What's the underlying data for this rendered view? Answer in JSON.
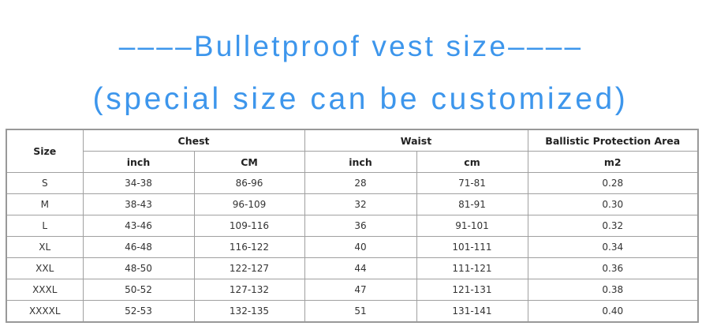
{
  "title": "––––Bulletproof vest size––––",
  "subtitle": "(special size can be customized)",
  "accent_color": "#3d96ec",
  "table": {
    "header_groups": {
      "size": "Size",
      "chest": "Chest",
      "waist": "Waist",
      "area": "Ballistic Protection Area"
    },
    "sub_headers": [
      "inch",
      "CM",
      "inch",
      "cm",
      "m2"
    ],
    "rows": [
      [
        "S",
        "34-38",
        "86-96",
        "28",
        "71-81",
        "0.28"
      ],
      [
        "M",
        "38-43",
        "96-109",
        "32",
        "81-91",
        "0.30"
      ],
      [
        "L",
        "43-46",
        "109-116",
        "36",
        "91-101",
        "0.32"
      ],
      [
        "XL",
        "46-48",
        "116-122",
        "40",
        "101-111",
        "0.34"
      ],
      [
        "XXL",
        "48-50",
        "122-127",
        "44",
        "111-121",
        "0.36"
      ],
      [
        "XXXL",
        "50-52",
        "127-132",
        "47",
        "121-131",
        "0.38"
      ],
      [
        "XXXXL",
        "52-53",
        "132-135",
        "51",
        "131-141",
        "0.40"
      ]
    ]
  }
}
